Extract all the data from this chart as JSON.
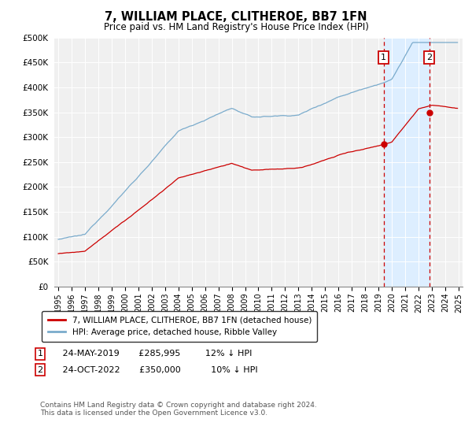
{
  "title": "7, WILLIAM PLACE, CLITHEROE, BB7 1FN",
  "subtitle": "Price paid vs. HM Land Registry's House Price Index (HPI)",
  "ylim": [
    0,
    500000
  ],
  "yticks": [
    0,
    50000,
    100000,
    150000,
    200000,
    250000,
    300000,
    350000,
    400000,
    450000,
    500000
  ],
  "ytick_labels": [
    "£0",
    "£50K",
    "£100K",
    "£150K",
    "£200K",
    "£250K",
    "£300K",
    "£350K",
    "£400K",
    "£450K",
    "£500K"
  ],
  "xlim_start": 1994.7,
  "xlim_end": 2025.3,
  "xtick_years": [
    1995,
    1996,
    1997,
    1998,
    1999,
    2000,
    2001,
    2002,
    2003,
    2004,
    2005,
    2006,
    2007,
    2008,
    2009,
    2010,
    2011,
    2012,
    2013,
    2014,
    2015,
    2016,
    2017,
    2018,
    2019,
    2020,
    2021,
    2022,
    2023,
    2024,
    2025
  ],
  "sale1_x": 2019.38,
  "sale1_y": 285995,
  "sale2_x": 2022.8,
  "sale2_y": 350000,
  "line_color_red": "#cc0000",
  "line_color_blue": "#7aabcc",
  "shade_color": "#ddeeff",
  "marker_box_color": "#cc0000",
  "legend_line1": "7, WILLIAM PLACE, CLITHEROE, BB7 1FN (detached house)",
  "legend_line2": "HPI: Average price, detached house, Ribble Valley",
  "sale1_label": "1",
  "sale2_label": "2",
  "sale1_date": "24-MAY-2019",
  "sale1_price": "£285,995",
  "sale1_hpi": "12% ↓ HPI",
  "sale2_date": "24-OCT-2022",
  "sale2_price": "£350,000",
  "sale2_hpi": "10% ↓ HPI",
  "footnote": "Contains HM Land Registry data © Crown copyright and database right 2024.\nThis data is licensed under the Open Government Licence v3.0.",
  "bg_color": "#f0f0f0"
}
